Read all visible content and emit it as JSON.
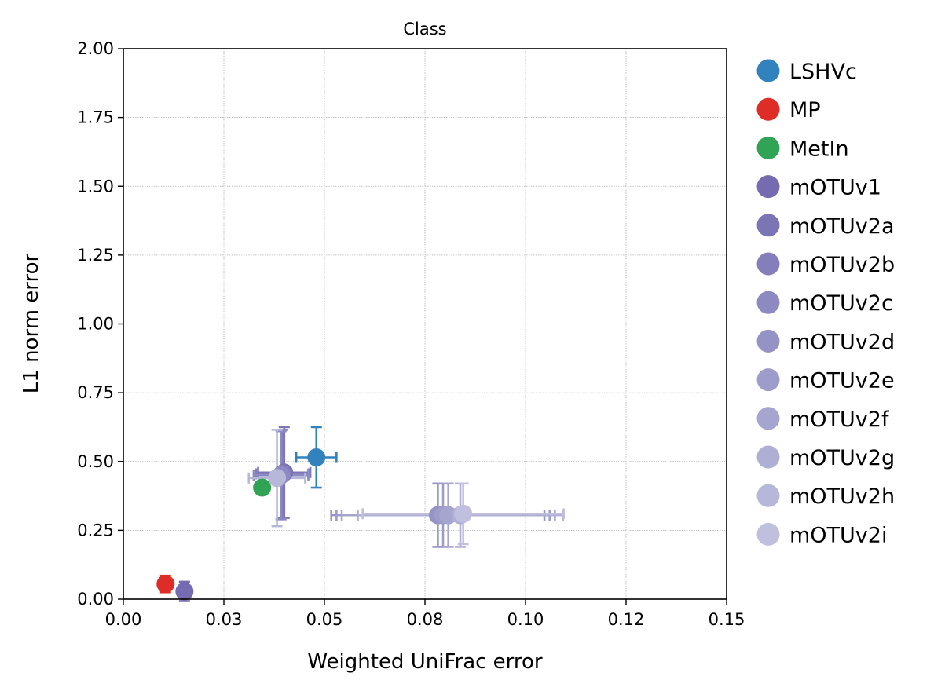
{
  "chart_data": {
    "type": "scatter",
    "title": "Class",
    "xlabel": "Weighted UniFrac error",
    "ylabel": "L1 norm error",
    "xlim": [
      0,
      0.15
    ],
    "ylim": [
      0,
      2.0
    ],
    "x_ticks": [
      0,
      0.025,
      0.05,
      0.075,
      0.1,
      0.125,
      0.15
    ],
    "x_tick_labels": [
      "0.00",
      "0.03",
      "0.05",
      "0.08",
      "0.10",
      "0.12",
      "0.15"
    ],
    "y_ticks": [
      0,
      0.25,
      0.5,
      0.75,
      1.0,
      1.25,
      1.5,
      1.75,
      2.0
    ],
    "y_tick_labels": [
      "0.00",
      "0.25",
      "0.50",
      "0.75",
      "1.00",
      "1.25",
      "1.50",
      "1.75",
      "2.00"
    ],
    "grid": true,
    "legend_position": "outside-right",
    "series": [
      {
        "name": "LSHVc",
        "color": "#3182bd",
        "x": 0.048,
        "y": 0.515,
        "xerr": 0.005,
        "yerr": 0.11
      },
      {
        "name": "MP",
        "color": "#de2d26",
        "x": 0.0105,
        "y": 0.055,
        "xerr": 0,
        "yerr": 0.03
      },
      {
        "name": "MetIn",
        "color": "#31a354",
        "x": 0.0345,
        "y": 0.405,
        "xerr": 0,
        "yerr": 0
      },
      {
        "name": "mOTUv1",
        "color": "#756bb1",
        "x": 0.0152,
        "y": 0.028,
        "xerr": 0,
        "yerr": 0.035
      },
      {
        "name": "mOTUv2a",
        "color": "#7b74b5",
        "x": 0.04,
        "y": 0.46,
        "xerr": 0.0065,
        "yerr": 0.165
      },
      {
        "name": "mOTUv2b",
        "color": "#847fbb",
        "x": 0.0395,
        "y": 0.455,
        "xerr": 0.0065,
        "yerr": 0.16
      },
      {
        "name": "mOTUv2c",
        "color": "#8c8ac0",
        "x": 0.0392,
        "y": 0.45,
        "xerr": 0.0068,
        "yerr": 0.16
      },
      {
        "name": "mOTUv2d",
        "color": "#9593c5",
        "x": 0.0782,
        "y": 0.305,
        "xerr": 0.0265,
        "yerr": 0.115
      },
      {
        "name": "mOTUv2e",
        "color": "#9d9cca",
        "x": 0.0795,
        "y": 0.305,
        "xerr": 0.0265,
        "yerr": 0.115
      },
      {
        "name": "mOTUv2f",
        "color": "#a6a5cf",
        "x": 0.0808,
        "y": 0.305,
        "xerr": 0.0265,
        "yerr": 0.115
      },
      {
        "name": "mOTUv2g",
        "color": "#afaed4",
        "x": 0.0838,
        "y": 0.305,
        "xerr": 0.0255,
        "yerr": 0.115
      },
      {
        "name": "mOTUv2h",
        "color": "#b7b7d9",
        "x": 0.0382,
        "y": 0.44,
        "xerr": 0.007,
        "yerr": 0.175
      },
      {
        "name": "mOTUv2i",
        "color": "#c0c0de",
        "x": 0.0845,
        "y": 0.31,
        "xerr": 0.025,
        "yerr": 0.11
      }
    ]
  }
}
